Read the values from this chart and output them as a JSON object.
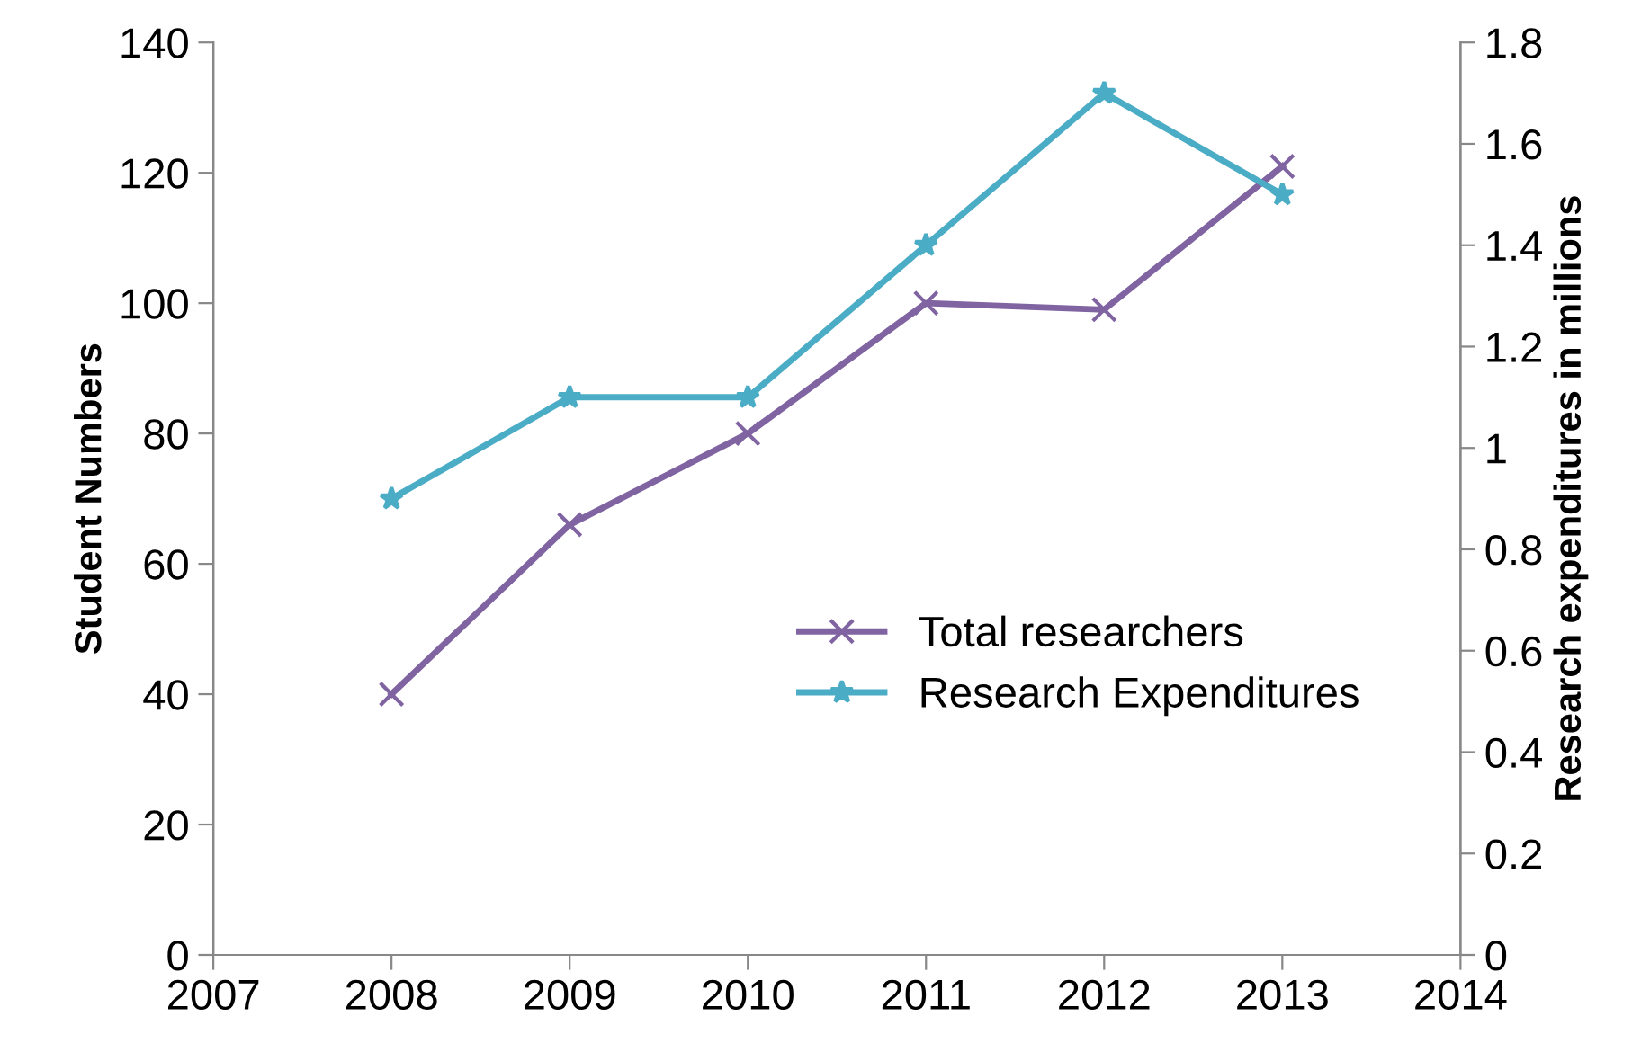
{
  "chart_data": {
    "type": "line",
    "x": [
      2008,
      2009,
      2010,
      2011,
      2012,
      2013
    ],
    "ylabel": "Student Numbers",
    "y2label": "Research expenditures in millions",
    "series": [
      {
        "name": "Total researchers",
        "color": "#8064a2",
        "marker": "cross",
        "values": [
          40,
          66,
          80,
          100,
          99,
          121
        ]
      },
      {
        "name": "Research Expenditures",
        "color": "#4bacc6",
        "marker": "star",
        "axis": "y2",
        "values": [
          0.9,
          1.1,
          1.1,
          1.4,
          1.7,
          1.5
        ]
      }
    ],
    "xlim": [
      2007,
      2014
    ],
    "xticks": [
      2007,
      2008,
      2009,
      2010,
      2011,
      2012,
      2013,
      2014
    ],
    "ylim": [
      0,
      140
    ],
    "yticks": [
      0,
      20,
      40,
      60,
      80,
      100,
      120,
      140
    ],
    "y2lim": [
      0,
      1.8
    ],
    "y2ticks": [
      0,
      0.2,
      0.4,
      0.6,
      0.8,
      1,
      1.2,
      1.4,
      1.6,
      1.8
    ],
    "legend": "lower right",
    "grid": false,
    "line_style": "solid"
  }
}
